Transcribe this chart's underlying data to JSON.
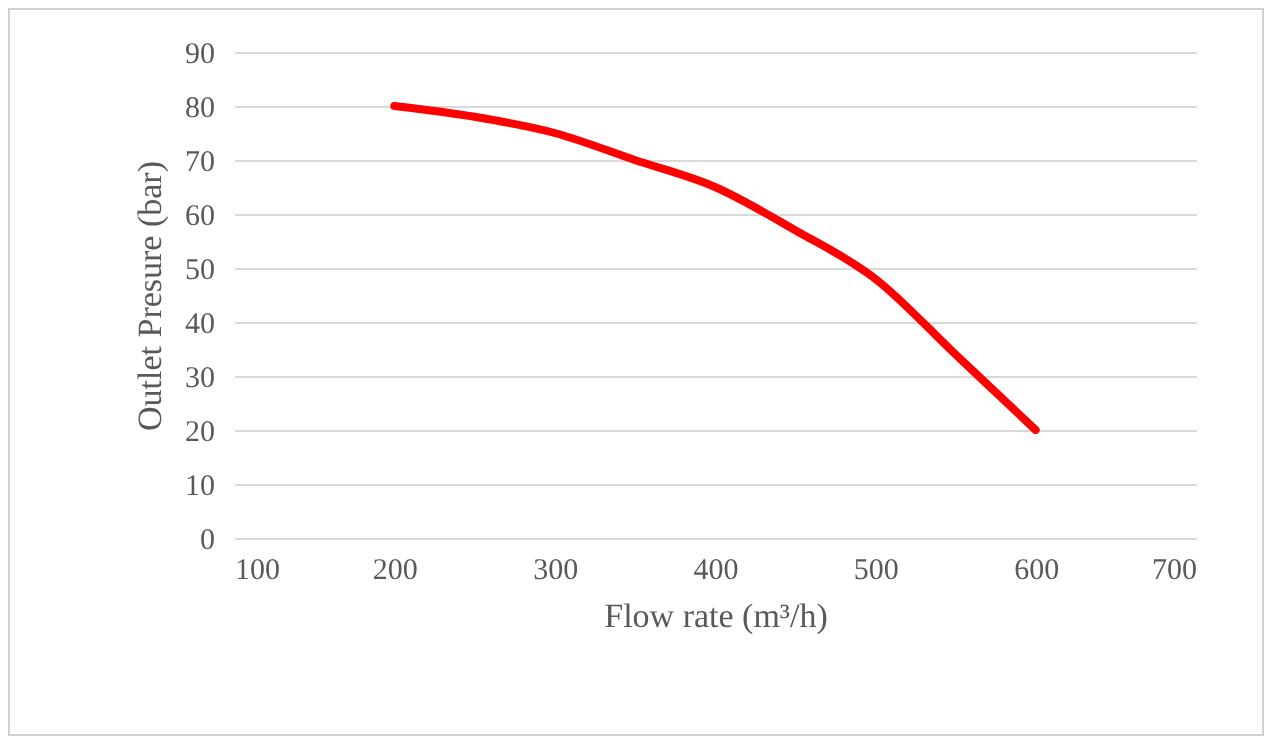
{
  "chart_data": {
    "type": "line",
    "xlabel": "Flow rate  (m³/h)",
    "ylabel": "Outlet Presure  (bar)",
    "x": [
      200,
      250,
      300,
      350,
      400,
      450,
      500,
      550,
      600
    ],
    "series": [
      {
        "color": "#ff0000",
        "values": [
          80,
          78,
          75,
          70,
          65,
          57,
          48,
          34,
          20
        ]
      }
    ],
    "xlim": [
      100,
      700
    ],
    "xticks": [
      100,
      200,
      300,
      400,
      500,
      600,
      700
    ],
    "ylim": [
      0,
      90
    ],
    "yticks": [
      0,
      10,
      20,
      30,
      40,
      50,
      60,
      70,
      80,
      90
    ],
    "grid": "y",
    "marker": "none",
    "line_style": "solid"
  }
}
